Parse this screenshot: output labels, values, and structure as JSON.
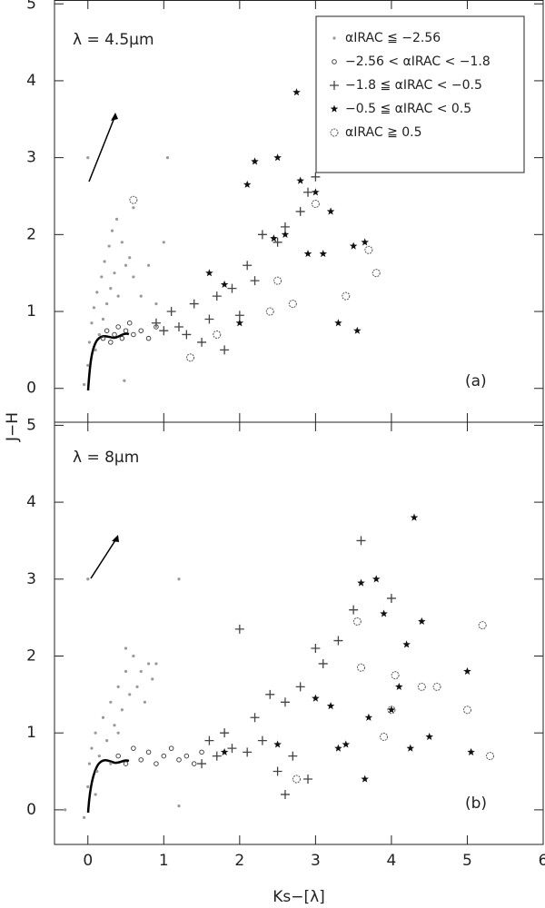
{
  "chart_data": [
    {
      "type": "scatter",
      "annotation": "λ = 4.5μm",
      "panel_label": "(a)",
      "ylabel": "J−H",
      "xlim": [
        -0.44,
        6
      ],
      "ylim": [
        -0.44,
        5.05
      ],
      "xticks": [
        0,
        1,
        2,
        3,
        4,
        5,
        6
      ],
      "xtick_labels": false,
      "yticks": [
        0,
        1,
        2,
        3,
        4,
        5
      ],
      "legend": "upper right",
      "series": [
        {
          "name": "αIRAC ≦ −2.56",
          "marker": "dot",
          "color": "#999999",
          "x": [
            -0.05,
            0,
            0.02,
            0.05,
            0.08,
            0.1,
            0.12,
            0.15,
            0.18,
            0.2,
            0.22,
            0.25,
            0.28,
            0.3,
            0.32,
            0.35,
            0.38,
            0.4,
            0.45,
            0.5,
            0.55,
            0.6,
            0.7,
            0.8,
            0.9,
            1.0,
            0.6,
            0.0,
            1.05,
            0.48
          ],
          "values": [
            0.05,
            0.3,
            0.6,
            0.85,
            1.05,
            0.5,
            1.25,
            0.7,
            1.45,
            0.9,
            1.65,
            1.1,
            1.85,
            1.3,
            2.05,
            1.5,
            2.2,
            1.2,
            1.9,
            1.6,
            1.7,
            1.45,
            1.2,
            1.6,
            1.1,
            1.9,
            2.35,
            3.0,
            3.0,
            0.1
          ]
        },
        {
          "name": "−2.56 < αIRAC < −1.8",
          "marker": "small-circle",
          "color": "#333333",
          "x": [
            0.2,
            0.25,
            0.3,
            0.35,
            0.4,
            0.45,
            0.5,
            0.55,
            0.6,
            0.7,
            0.8,
            0.9
          ],
          "values": [
            0.65,
            0.75,
            0.6,
            0.7,
            0.8,
            0.65,
            0.75,
            0.85,
            0.7,
            0.75,
            0.65,
            0.8
          ]
        },
        {
          "name": "−1.8 ≦ αIRAC < −0.5",
          "marker": "plus",
          "color": "#444444",
          "x": [
            0.9,
            1.0,
            1.1,
            1.2,
            1.3,
            1.4,
            1.5,
            1.6,
            1.7,
            1.8,
            1.9,
            2.0,
            2.1,
            2.2,
            2.3,
            2.5,
            2.6,
            2.8,
            2.9,
            3.0
          ],
          "values": [
            0.85,
            0.75,
            1.0,
            0.8,
            0.7,
            1.1,
            0.6,
            0.9,
            1.2,
            0.5,
            1.3,
            0.95,
            1.6,
            1.4,
            2.0,
            1.9,
            2.1,
            2.3,
            2.55,
            2.75
          ]
        },
        {
          "name": "−0.5 ≦ αIRAC < 0.5",
          "marker": "star",
          "color": "#111111",
          "x": [
            1.6,
            1.8,
            2.0,
            2.1,
            2.2,
            2.45,
            2.5,
            2.6,
            2.75,
            2.8,
            2.9,
            3.0,
            3.1,
            3.2,
            3.3,
            3.5,
            3.55,
            3.65
          ],
          "values": [
            1.5,
            1.35,
            0.85,
            2.65,
            2.95,
            1.95,
            3.0,
            2.0,
            3.85,
            2.7,
            1.75,
            2.55,
            1.75,
            2.3,
            0.85,
            1.85,
            0.75,
            1.9
          ]
        },
        {
          "name": "αIRAC ≧ 0.5",
          "marker": "circle",
          "color": "#555555",
          "x": [
            0.6,
            1.35,
            1.7,
            2.4,
            2.5,
            2.7,
            3.0,
            3.4,
            3.7,
            3.8
          ],
          "values": [
            2.45,
            0.4,
            0.7,
            1.0,
            1.4,
            1.1,
            2.4,
            1.2,
            1.8,
            1.5
          ]
        }
      ]
    },
    {
      "type": "scatter",
      "annotation": "λ = 8μm",
      "panel_label": "(b)",
      "xlabel": "Ks−[λ]",
      "xlim": [
        -0.44,
        6
      ],
      "ylim": [
        -0.45,
        5.04
      ],
      "xticks": [
        0,
        1,
        2,
        3,
        4,
        5,
        6
      ],
      "xtick_labels": true,
      "yticks": [
        0,
        1,
        2,
        3,
        4,
        5
      ],
      "series": [
        {
          "marker": "dot",
          "color": "#999999",
          "x": [
            -0.3,
            -0.05,
            0,
            0.02,
            0.05,
            0.1,
            0.12,
            0.15,
            0.2,
            0.25,
            0.3,
            0.35,
            0.4,
            0.45,
            0.5,
            0.55,
            0.6,
            0.65,
            0.7,
            0.75,
            0.8,
            0.85,
            0.9,
            0.5,
            0.3,
            0.1,
            0.0,
            1.2,
            1.2,
            0.4
          ],
          "values": [
            0.0,
            -0.1,
            0.3,
            0.6,
            0.8,
            1.0,
            0.5,
            0.7,
            1.2,
            0.9,
            1.4,
            1.1,
            1.6,
            1.3,
            1.8,
            1.5,
            2.0,
            1.6,
            1.8,
            1.4,
            1.9,
            1.7,
            1.9,
            2.1,
            0.6,
            0.2,
            3.0,
            3.0,
            0.05,
            1.0
          ]
        },
        {
          "marker": "small-circle",
          "color": "#333333",
          "x": [
            0.4,
            0.5,
            0.6,
            0.7,
            0.8,
            0.9,
            1.0,
            1.1,
            1.2,
            1.3,
            1.4,
            1.5
          ],
          "values": [
            0.7,
            0.6,
            0.8,
            0.65,
            0.75,
            0.6,
            0.7,
            0.8,
            0.65,
            0.7,
            0.6,
            0.75
          ]
        },
        {
          "marker": "plus",
          "color": "#444444",
          "x": [
            1.5,
            1.6,
            1.7,
            1.8,
            1.9,
            2.0,
            2.1,
            2.2,
            2.3,
            2.4,
            2.5,
            2.6,
            2.7,
            2.8,
            2.9,
            3.0,
            3.1,
            2.6,
            3.3,
            3.6,
            4.0,
            3.5
          ],
          "values": [
            0.6,
            0.9,
            0.7,
            1.0,
            0.8,
            2.35,
            0.75,
            1.2,
            0.9,
            1.5,
            0.5,
            1.4,
            0.7,
            1.6,
            0.4,
            2.1,
            1.9,
            0.2,
            2.2,
            3.5,
            2.75,
            2.6
          ]
        },
        {
          "marker": "star",
          "color": "#111111",
          "x": [
            1.8,
            2.5,
            3.0,
            3.2,
            3.3,
            3.4,
            3.6,
            3.65,
            3.7,
            3.8,
            3.9,
            4.0,
            4.1,
            4.2,
            4.25,
            4.3,
            4.4,
            4.5,
            5.0,
            5.05
          ],
          "values": [
            0.75,
            0.85,
            1.45,
            1.35,
            0.8,
            0.85,
            2.95,
            0.4,
            1.2,
            3.0,
            2.55,
            1.3,
            1.6,
            2.15,
            0.8,
            3.8,
            2.45,
            0.95,
            1.8,
            0.75
          ]
        },
        {
          "marker": "circle",
          "color": "#555555",
          "x": [
            2.75,
            3.55,
            3.6,
            3.9,
            4.0,
            4.05,
            4.4,
            4.6,
            5.0,
            5.2,
            5.3
          ],
          "values": [
            0.4,
            2.45,
            1.85,
            0.95,
            1.3,
            1.75,
            1.6,
            1.6,
            1.3,
            2.4,
            0.7
          ]
        }
      ]
    }
  ]
}
